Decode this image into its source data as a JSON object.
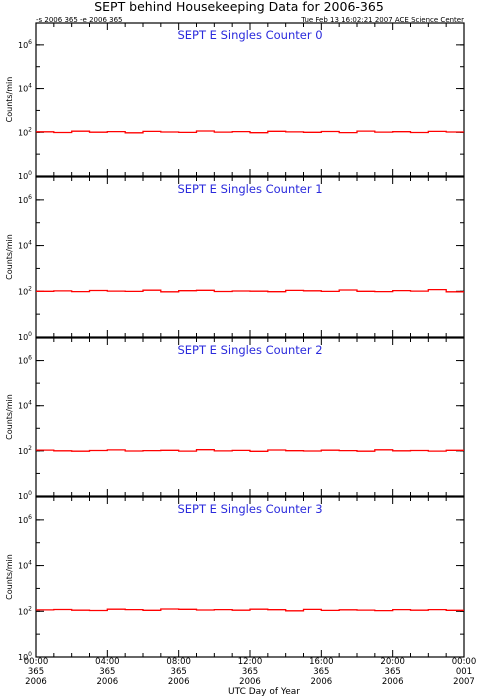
{
  "title": "SEPT behind Housekeeping Data for 2006-365",
  "subtitle_left": "-s 2006 365  -e 2006 365",
  "subtitle_right": "Tue Feb 13 16:02:21 2007 ACE Science Center",
  "xlabel": "UTC Day of Year",
  "colors": {
    "trace": "#ff0000",
    "panel_title": "#2a2adc",
    "axes": "#000000"
  },
  "chart_data": [
    {
      "type": "line",
      "title": "SEPT E Singles Counter 0",
      "ylabel": "Counts/min",
      "yscale": "log",
      "ylim": [
        1,
        10000000
      ],
      "yticks": [
        1,
        100,
        10000,
        1000000
      ],
      "ytick_labels": [
        "10^0",
        "10^2",
        "10^4",
        "10^6"
      ],
      "xlim": [
        0,
        24
      ],
      "series": [
        {
          "x": [
            0,
            1,
            2,
            3,
            4,
            5,
            6,
            7,
            8,
            9,
            10,
            11,
            12,
            13,
            14,
            15,
            16,
            17,
            18,
            19,
            20,
            21,
            22,
            23,
            24
          ],
          "values": [
            105,
            98,
            112,
            101,
            108,
            95,
            110,
            103,
            99,
            115,
            102,
            107,
            96,
            111,
            104,
            100,
            109,
            97,
            113,
            102,
            106,
            98,
            110,
            103,
            101
          ]
        }
      ]
    },
    {
      "type": "line",
      "title": "SEPT E Singles Counter 1",
      "ylabel": "Counts/min",
      "yscale": "log",
      "ylim": [
        1,
        10000000
      ],
      "yticks": [
        1,
        100,
        10000,
        1000000
      ],
      "ytick_labels": [
        "10^0",
        "10^2",
        "10^4",
        "10^6"
      ],
      "xlim": [
        0,
        24
      ],
      "series": [
        {
          "x": [
            0,
            1,
            2,
            3,
            4,
            5,
            6,
            7,
            8,
            9,
            10,
            11,
            12,
            13,
            14,
            15,
            16,
            17,
            18,
            19,
            20,
            21,
            22,
            23,
            24
          ],
          "values": [
            100,
            104,
            97,
            108,
            102,
            99,
            112,
            95,
            106,
            110,
            98,
            103,
            101,
            96,
            109,
            105,
            99,
            114,
            100,
            97,
            107,
            102,
            118,
            95,
            103
          ]
        }
      ]
    },
    {
      "type": "line",
      "title": "SEPT E Singles Counter 2",
      "ylabel": "Counts/min",
      "yscale": "log",
      "ylim": [
        1,
        10000000
      ],
      "yticks": [
        1,
        100,
        10000,
        1000000
      ],
      "ytick_labels": [
        "10^0",
        "10^2",
        "10^4",
        "10^6"
      ],
      "xlim": [
        0,
        24
      ],
      "series": [
        {
          "x": [
            0,
            1,
            2,
            3,
            4,
            5,
            6,
            7,
            8,
            9,
            10,
            11,
            12,
            13,
            14,
            15,
            16,
            17,
            18,
            19,
            20,
            21,
            22,
            23,
            24
          ],
          "values": [
            108,
            101,
            97,
            104,
            110,
            99,
            103,
            106,
            98,
            112,
            100,
            105,
            96,
            109,
            102,
            99,
            107,
            103,
            97,
            111,
            101,
            104,
            98,
            106,
            102
          ]
        }
      ]
    },
    {
      "type": "line",
      "title": "SEPT E Singles Counter 3",
      "ylabel": "Counts/min",
      "yscale": "log",
      "ylim": [
        1,
        10000000
      ],
      "yticks": [
        1,
        100,
        10000,
        1000000
      ],
      "ytick_labels": [
        "10^0",
        "10^2",
        "10^4",
        "10^6"
      ],
      "xlim": [
        0,
        24
      ],
      "series": [
        {
          "x": [
            0,
            1,
            2,
            3,
            4,
            5,
            6,
            7,
            8,
            9,
            10,
            11,
            12,
            13,
            14,
            15,
            16,
            17,
            18,
            19,
            20,
            21,
            22,
            23,
            24
          ],
          "values": [
            115,
            120,
            112,
            108,
            124,
            118,
            110,
            126,
            122,
            114,
            119,
            111,
            123,
            117,
            105,
            121,
            109,
            116,
            113,
            107,
            119,
            112,
            118,
            110,
            114
          ]
        }
      ]
    }
  ],
  "xticks": [
    {
      "x": 0,
      "lines": [
        "00:00",
        "365",
        "2006"
      ]
    },
    {
      "x": 4,
      "lines": [
        "04:00",
        "365",
        "2006"
      ]
    },
    {
      "x": 8,
      "lines": [
        "08:00",
        "365",
        "2006"
      ]
    },
    {
      "x": 12,
      "lines": [
        "12:00",
        "365",
        "2006"
      ]
    },
    {
      "x": 16,
      "lines": [
        "16:00",
        "365",
        "2006"
      ]
    },
    {
      "x": 20,
      "lines": [
        "20:00",
        "365",
        "2006"
      ]
    },
    {
      "x": 24,
      "lines": [
        "00:00",
        "001",
        "2007"
      ]
    }
  ]
}
